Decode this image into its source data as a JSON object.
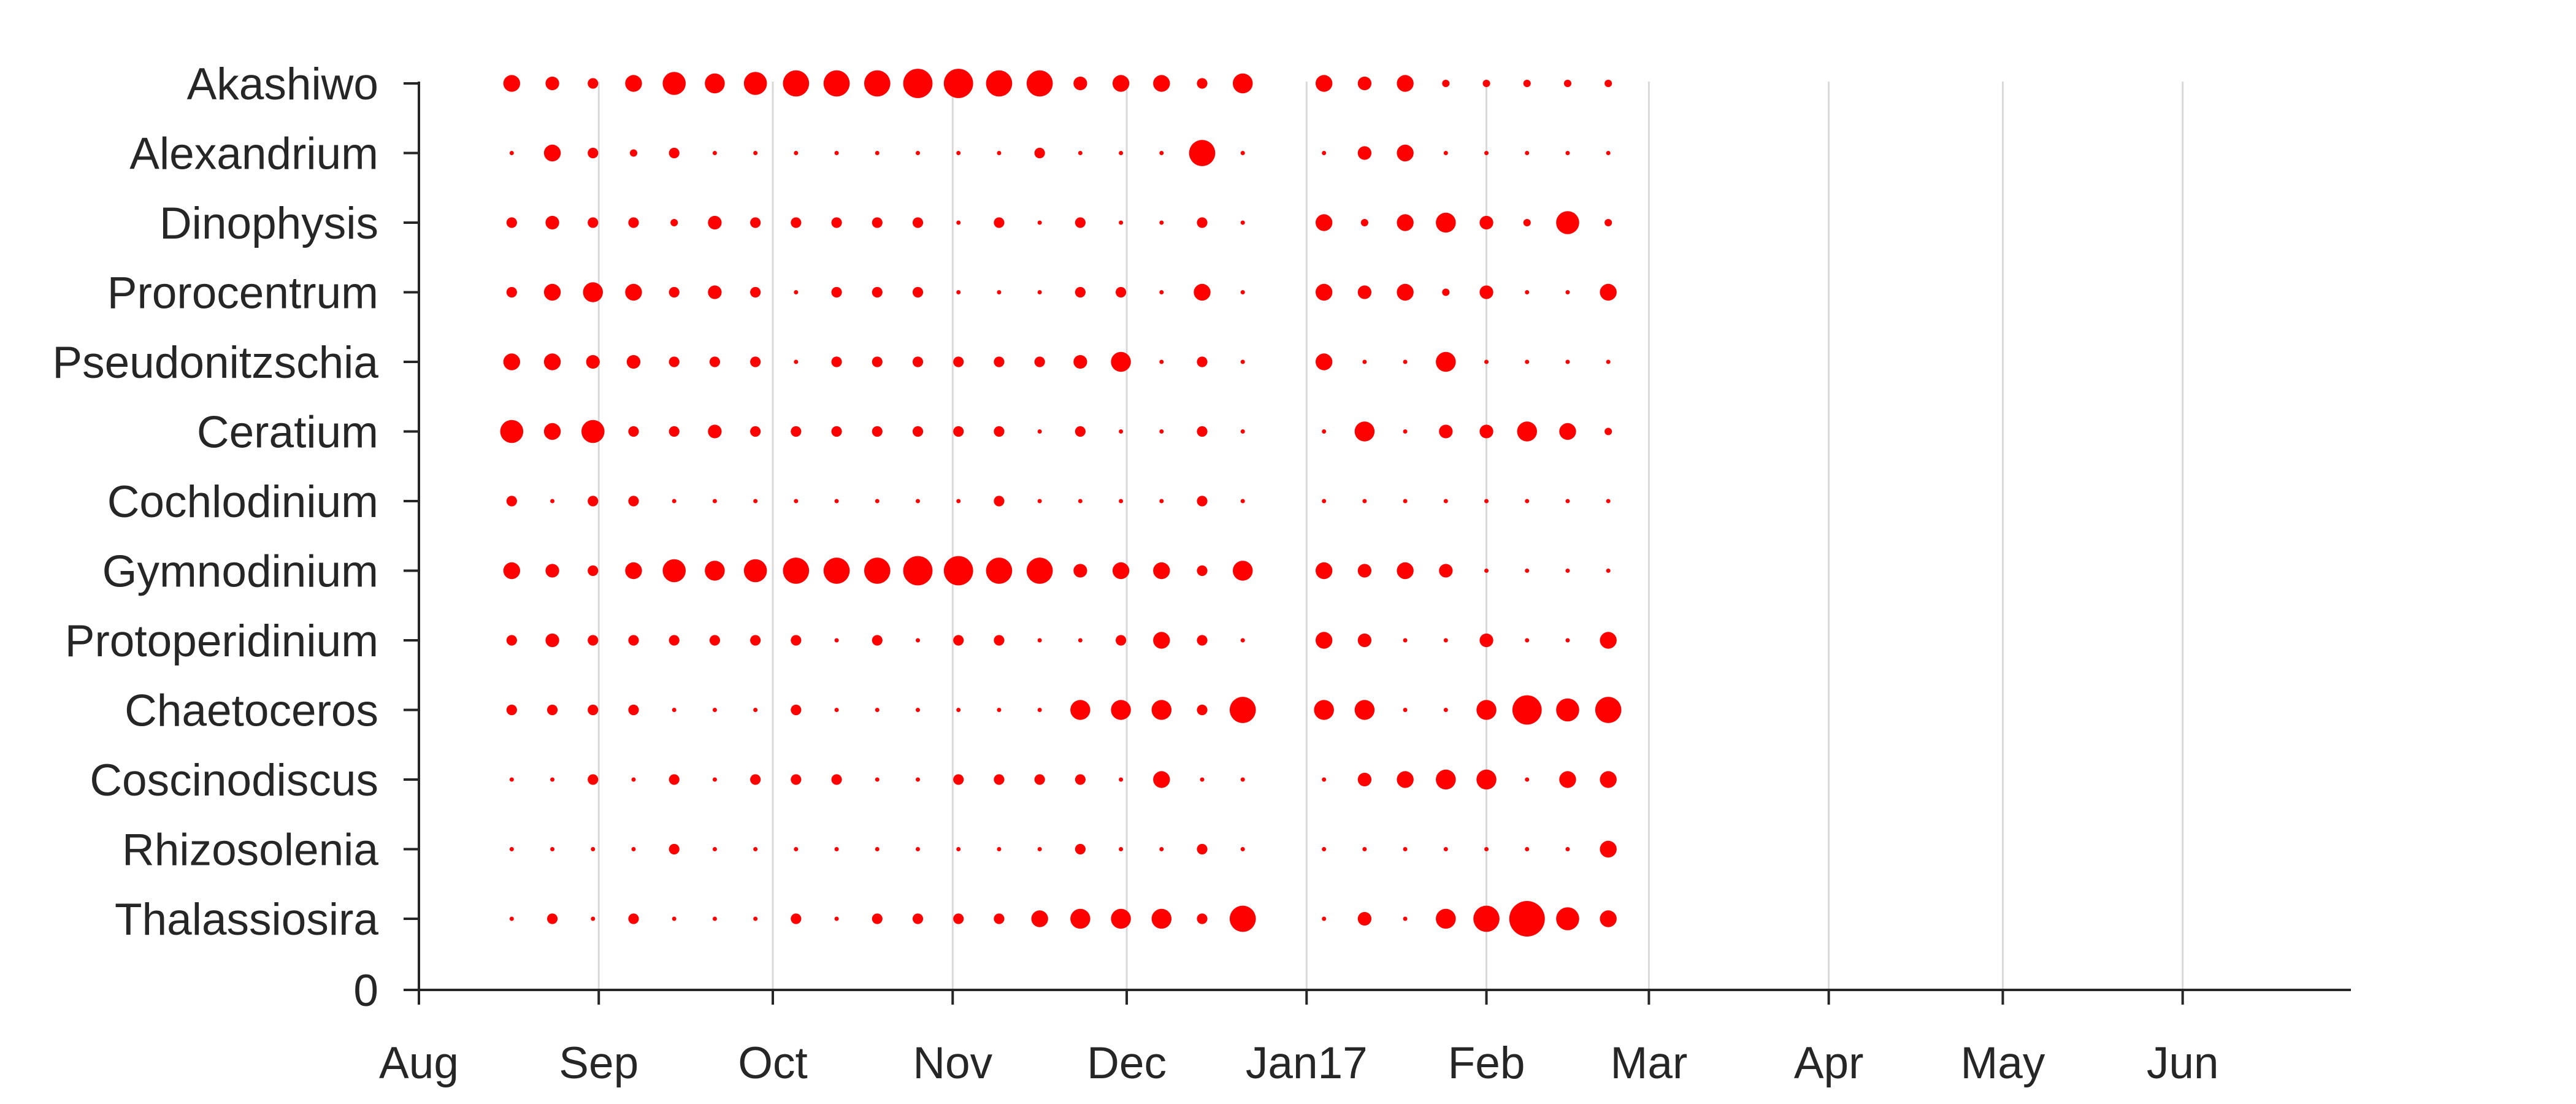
{
  "chart_data": {
    "type": "scatter",
    "title": "",
    "xlabel": "",
    "ylabel": "",
    "marker_color": "#ff0000",
    "grid": "vertical, at Sep–Jun month ticks",
    "x_ticks": [
      "Aug",
      "Sep",
      "Oct",
      "Nov",
      "Dec",
      "Jan17",
      "Feb",
      "Mar",
      "Apr",
      "May",
      "Jun"
    ],
    "x_tick_dates": [
      "2016-08-01",
      "2016-09-01",
      "2016-10-01",
      "2016-11-01",
      "2016-12-01",
      "2017-01-01",
      "2017-02-01",
      "2017-03-01",
      "2017-04-01",
      "2017-05-01",
      "2017-06-01"
    ],
    "xlim": [
      "2016-08-01",
      "2017-06-30"
    ],
    "sample_dates": [
      "2016-08-17",
      "2016-08-24",
      "2016-08-31",
      "2016-09-07",
      "2016-09-14",
      "2016-09-21",
      "2016-09-28",
      "2016-10-05",
      "2016-10-12",
      "2016-10-19",
      "2016-10-26",
      "2016-11-02",
      "2016-11-09",
      "2016-11-16",
      "2016-11-23",
      "2016-11-30",
      "2016-12-07",
      "2016-12-14",
      "2016-12-21",
      "2017-01-04",
      "2017-01-11",
      "2017-01-18",
      "2017-01-25",
      "2017-02-01",
      "2017-02-08",
      "2017-02-15",
      "2017-02-22"
    ],
    "size_scale": "relative abundance, 0 (smallest dot) to 10 (largest dot)",
    "y_zero_label": "0",
    "series": [
      {
        "name": "Akashiwo",
        "values": [
          4,
          3,
          2,
          4,
          6,
          5,
          6,
          7,
          7,
          7,
          8,
          8,
          7,
          7,
          3,
          4,
          4,
          2,
          5,
          4,
          3,
          4,
          1,
          1,
          1,
          1,
          1
        ]
      },
      {
        "name": "Alexandrium",
        "values": [
          0,
          4,
          2,
          1,
          2,
          0,
          0,
          0,
          0,
          0,
          0,
          0,
          0,
          2,
          0,
          0,
          0,
          7,
          0,
          0,
          3,
          4,
          0,
          0,
          0,
          0,
          0
        ]
      },
      {
        "name": "Dinophysis",
        "values": [
          2,
          3,
          2,
          2,
          1,
          3,
          2,
          2,
          2,
          2,
          2,
          0,
          2,
          0,
          2,
          0,
          0,
          2,
          0,
          4,
          1,
          4,
          5,
          3,
          1,
          6,
          1
        ]
      },
      {
        "name": "Prorocentrum",
        "values": [
          2,
          4,
          5,
          4,
          2,
          3,
          2,
          0,
          2,
          2,
          2,
          0,
          0,
          0,
          2,
          2,
          0,
          4,
          0,
          4,
          3,
          4,
          1,
          3,
          0,
          0,
          4
        ]
      },
      {
        "name": "Pseudonitzschia",
        "values": [
          4,
          4,
          3,
          3,
          2,
          2,
          2,
          0,
          2,
          2,
          2,
          2,
          2,
          2,
          3,
          5,
          0,
          2,
          0,
          4,
          0,
          0,
          5,
          0,
          0,
          0,
          0
        ]
      },
      {
        "name": "Ceratium",
        "values": [
          6,
          4,
          6,
          2,
          2,
          3,
          2,
          2,
          2,
          2,
          2,
          2,
          2,
          0,
          2,
          0,
          0,
          2,
          0,
          0,
          5,
          0,
          3,
          3,
          5,
          4,
          1
        ]
      },
      {
        "name": "Cochlodinium",
        "values": [
          2,
          0,
          2,
          2,
          0,
          0,
          0,
          0,
          0,
          0,
          0,
          0,
          2,
          0,
          0,
          0,
          0,
          2,
          0,
          0,
          0,
          0,
          0,
          0,
          0,
          0,
          0
        ]
      },
      {
        "name": "Gymnodinium",
        "values": [
          4,
          3,
          2,
          4,
          6,
          5,
          6,
          7,
          7,
          7,
          8,
          8,
          7,
          7,
          3,
          4,
          4,
          2,
          5,
          4,
          3,
          4,
          3,
          0,
          0,
          0,
          0
        ]
      },
      {
        "name": "Protoperidinium",
        "values": [
          2,
          3,
          2,
          2,
          2,
          2,
          2,
          2,
          0,
          2,
          0,
          2,
          2,
          0,
          0,
          2,
          4,
          2,
          0,
          4,
          3,
          0,
          0,
          3,
          0,
          0,
          4
        ]
      },
      {
        "name": "Chaetoceros",
        "values": [
          2,
          2,
          2,
          2,
          0,
          0,
          0,
          2,
          0,
          0,
          0,
          0,
          0,
          0,
          5,
          5,
          5,
          2,
          7,
          5,
          5,
          0,
          0,
          5,
          8,
          6,
          7
        ]
      },
      {
        "name": "Coscinodiscus",
        "values": [
          0,
          0,
          2,
          0,
          2,
          0,
          2,
          2,
          2,
          0,
          0,
          2,
          2,
          2,
          2,
          0,
          4,
          0,
          0,
          0,
          3,
          4,
          5,
          5,
          0,
          4,
          4
        ]
      },
      {
        "name": "Rhizosolenia",
        "values": [
          0,
          0,
          0,
          0,
          2,
          0,
          0,
          0,
          0,
          0,
          0,
          0,
          0,
          0,
          2,
          0,
          0,
          2,
          0,
          0,
          0,
          0,
          0,
          0,
          0,
          0,
          4
        ]
      },
      {
        "name": "Thalassiosira",
        "values": [
          0,
          2,
          0,
          2,
          0,
          0,
          0,
          2,
          0,
          2,
          2,
          2,
          2,
          4,
          5,
          5,
          5,
          2,
          7,
          0,
          3,
          0,
          5,
          7,
          10,
          6,
          4
        ]
      }
    ]
  }
}
